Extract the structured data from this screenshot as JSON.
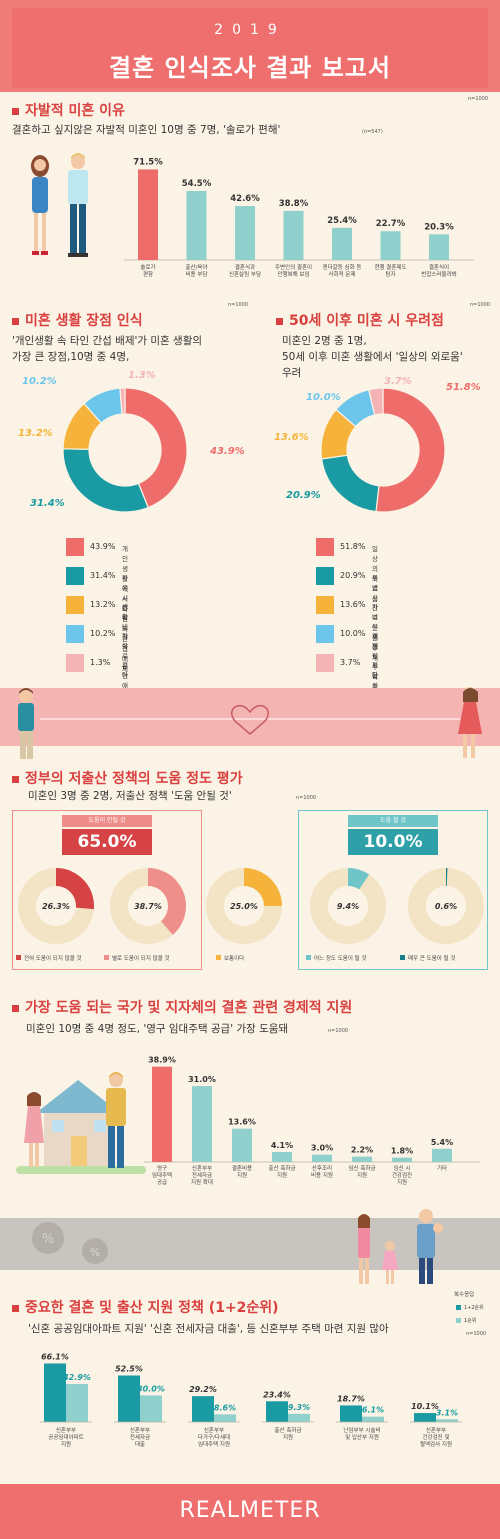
{
  "header": {
    "year": "2019",
    "title": "결혼 인식조사 결과 보고서"
  },
  "sec1": {
    "title": "자발적 미혼 이유",
    "subtitle": "결혼하고 싶지않은 자발적 미혼인 10명 중 7명, '솔로가 편해'",
    "n_top": "n=1000",
    "n_small": "(n=547)"
  },
  "sec2": {
    "title": "미혼 생활 장점 인식",
    "subtitle1": "'개인생활 속 타인 간섭 배제'가 미혼 생활의",
    "subtitle2": "가장 큰 장점,10명 중 4명,",
    "n": "n=1000"
  },
  "sec3": {
    "title": "50세 이후 미혼 시 우려점",
    "subtitle1": "미혼인 2명 중 1명,",
    "subtitle2": "50세 이후 미혼 생활에서 '일상의 외로움'",
    "subtitle3": "우려",
    "n": "n=1000"
  },
  "sec4": {
    "title": "정부의 저출산 정책의 도움 정도 평가",
    "subtitle": "미혼인 3명 중 2명, 저출산 정책 '도움 안될 것'",
    "n": "n=1000",
    "not_help_label": "도움이 안될 것",
    "not_help_value": "65.0%",
    "help_label": "도움 될 것",
    "help_value": "10.0%"
  },
  "sec5": {
    "title": "가장 도움 되는 국가 및 지자체의 결혼 관련 경제적 지원",
    "subtitle": "미혼인 10명 중 4명 정도, '영구 임대주택 공급' 가장 도움돼",
    "n": "n=1000"
  },
  "sec6": {
    "title": "중요한 결혼 및 출산 지원 정책 (1+2순위)",
    "subtitle": "'신혼 공공임대아파트 지원' '신혼 전세자금 대출', 등 신혼부부 주택 마련 지원 많아",
    "multi": "복수응답",
    "leg1": "1+2순위",
    "leg2": "1순위",
    "n": "n=1000"
  },
  "footer": {
    "brand": "REALMETER"
  },
  "colors": {
    "coral": "#ee6d6b",
    "teal": "#1a9aa2",
    "mint": "#8fd0cc",
    "orange": "#f6b33c",
    "sky": "#6cc6ec",
    "pink": "#f4b4b6",
    "cream": "#f4e4c6",
    "darkteal": "#14818a"
  },
  "chart_data": [
    {
      "id": "reasons",
      "type": "bar",
      "categories": [
        "솔로가\n편함",
        "출산/육아\n비용 부담",
        "결혼식과\n신혼살림 부담",
        "주변인의 결혼이\n안행복해 보임",
        "젠더갈등 심화 등\n사회적 문제",
        "현행 결혼제도\n탐지",
        "결혼식이\n번잡스러울까봐"
      ],
      "values": [
        71.5,
        54.5,
        42.6,
        38.8,
        25.4,
        22.7,
        20.3
      ],
      "labels": [
        "71.5%",
        "54.5%",
        "42.6%",
        "38.8%",
        "25.4%",
        "22.7%",
        "20.3%"
      ],
      "ylim": [
        0,
        75
      ]
    },
    {
      "id": "advantages",
      "type": "pie",
      "labels": [
        "개인생활에서 타인의 간섭 배제",
        "자유시간 확보",
        "생활비 절약",
        "자유로운 연애 가능",
        "기타"
      ],
      "values": [
        43.9,
        31.4,
        13.2,
        10.2,
        1.3
      ],
      "pct": [
        "43.9%",
        "31.4%",
        "13.2%",
        "10.2%",
        "1.3%"
      ]
    },
    {
      "id": "worries",
      "type": "pie",
      "labels": [
        "일상의 외로움",
        "투병 시 간호인원 부재",
        "자녀 부재한 노후 걱정",
        "경제적 도움의 부족",
        "기타"
      ],
      "values": [
        51.8,
        20.9,
        13.6,
        10.0,
        3.7
      ],
      "pct": [
        "51.8%",
        "20.9%",
        "13.6%",
        "10.0%",
        "3.7%"
      ]
    },
    {
      "id": "policy_help",
      "type": "pie",
      "labels": [
        "전혀 도움이 되지 않을 것",
        "별로 도움이 되지 않을 것",
        "보통이다",
        "어느 정도 도움이 될 것",
        "매우 큰 도움이 될 것"
      ],
      "values": [
        26.3,
        38.7,
        25.0,
        9.4,
        0.6
      ],
      "pct": [
        "26.3%",
        "38.7%",
        "25.0%",
        "9.4%",
        "0.6%"
      ]
    },
    {
      "id": "economic_support",
      "type": "bar",
      "categories": [
        "영구\n임대주택\n공급",
        "신혼부부\n전세자금\n지원 확대",
        "결혼비용\n지원",
        "출산 축하금\n지원",
        "산후조리\n비용 지원",
        "임신 축하금\n지원",
        "임신 시\n건강검진\n지원",
        "기타"
      ],
      "values": [
        38.9,
        31.0,
        13.6,
        4.1,
        3.0,
        2.2,
        1.8,
        5.4
      ],
      "labels": [
        "38.9%",
        "31.0%",
        "13.6%",
        "4.1%",
        "3.0%",
        "2.2%",
        "1.8%",
        "5.4%"
      ],
      "ylim": [
        0,
        40
      ]
    },
    {
      "id": "key_policies",
      "type": "bar",
      "categories": [
        "신혼부부\n공공임대아파트\n지원",
        "신혼부부\n전세자금\n대출",
        "신혼부부\n다가구/다세대\n임대주택 지원",
        "출산 축하금\n지원",
        "난임부부 시술비\n및 입산부 지원",
        "신혼부부\n건강검진 및\n혈액검사 지원"
      ],
      "series": [
        {
          "name": "1+2순위",
          "values": [
            66.1,
            52.5,
            29.2,
            23.4,
            18.7,
            10.1
          ],
          "labels": [
            "66.1%",
            "52.5%",
            "29.2%",
            "23.4%",
            "18.7%",
            "10.1%"
          ]
        },
        {
          "name": "1순위",
          "values": [
            42.9,
            30.0,
            8.6,
            9.3,
            6.1,
            3.1
          ],
          "labels": [
            "42.9%",
            "30.0%",
            "8.6%",
            "9.3%",
            "6.1%",
            "3.1%"
          ]
        }
      ],
      "ylim": [
        0,
        70
      ]
    }
  ]
}
